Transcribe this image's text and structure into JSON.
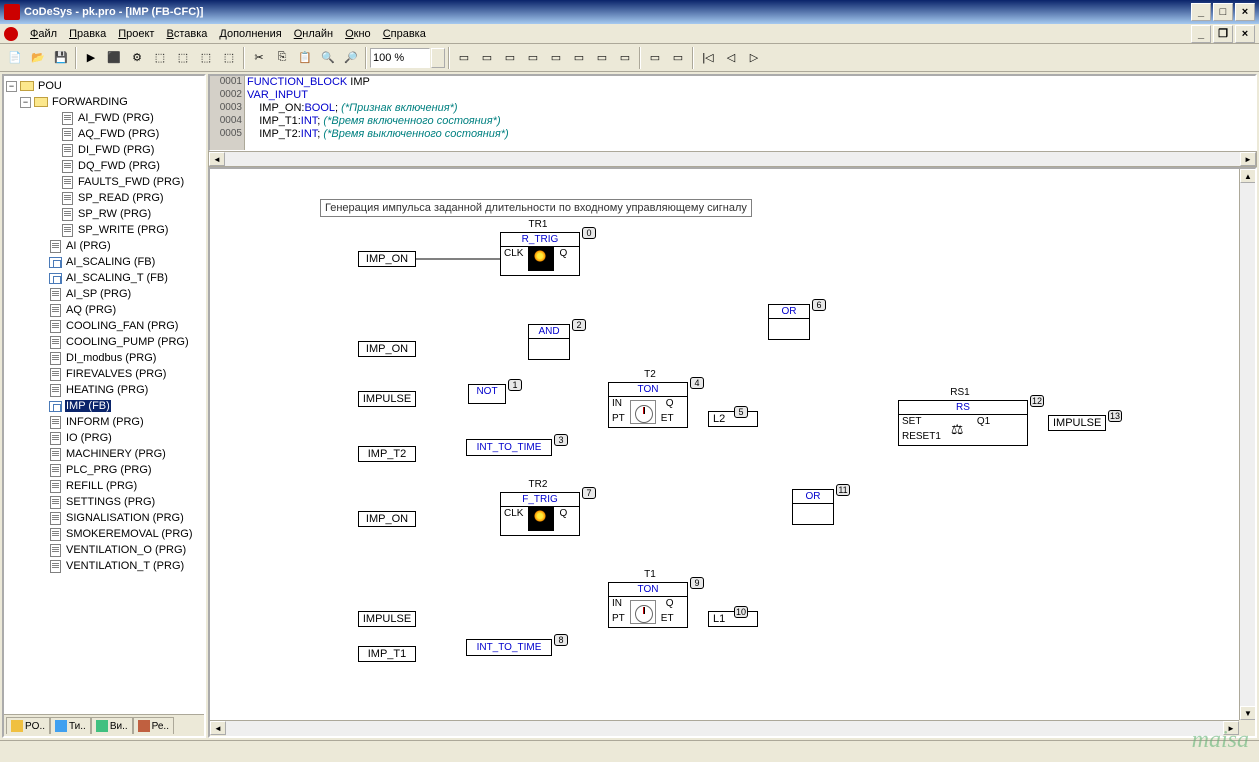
{
  "title": "CoDeSys - pk.pro - [IMP (FB-CFC)]",
  "menus": [
    "Файл",
    "Правка",
    "Проект",
    "Вставка",
    "Дополнения",
    "Онлайн",
    "Окно",
    "Справка"
  ],
  "zoom": "100 %",
  "sidebar": {
    "root": "POU",
    "folder": "FORWARDING",
    "folder_items": [
      "AI_FWD (PRG)",
      "AQ_FWD (PRG)",
      "DI_FWD (PRG)",
      "DQ_FWD (PRG)",
      "FAULTS_FWD (PRG)",
      "SP_READ (PRG)",
      "SP_RW (PRG)",
      "SP_WRITE (PRG)"
    ],
    "items": [
      "AI (PRG)",
      "AI_SCALING (FB)",
      "AI_SCALING_T (FB)",
      "AI_SP (PRG)",
      "AQ (PRG)",
      "COOLING_FAN (PRG)",
      "COOLING_PUMP (PRG)",
      "DI_modbus (PRG)",
      "FIREVALVES (PRG)",
      "HEATING (PRG)",
      "IMP (FB)",
      "INFORM (PRG)",
      "IO (PRG)",
      "MACHINERY (PRG)",
      "PLC_PRG (PRG)",
      "REFILL (PRG)",
      "SETTINGS (PRG)",
      "SIGNALISATION (PRG)",
      "SMOKEREMOVAL (PRG)",
      "VENTILATION_O (PRG)",
      "VENTILATION_T (PRG)"
    ],
    "selected": "IMP (FB)",
    "tabs": [
      "PO..",
      "Ти..",
      "Ви..",
      "Ре.."
    ]
  },
  "code": {
    "lines": [
      {
        "n": "0001",
        "t": "FUNCTION_BLOCK IMP",
        "cls": "kw"
      },
      {
        "n": "0002",
        "t": "VAR_INPUT",
        "cls": "kw"
      },
      {
        "n": "0003",
        "indent": "    ",
        "v": "IMP_ON:",
        "ty": "BOOL",
        "cm": "(*Признак включения*)"
      },
      {
        "n": "0004",
        "indent": "    ",
        "v": "IMP_T1:",
        "ty": "INT",
        "cm": "(*Время включенного состояния*)"
      },
      {
        "n": "0005",
        "indent": "    ",
        "v": "IMP_T2:",
        "ty": "INT",
        "cm": "(*Время выключенного состояния*)"
      }
    ]
  },
  "cfc": {
    "comment": "Генерация импульса заданной длительности по входному управляющему сигналу",
    "inputs": {
      "imp_on_1": "IMP_ON",
      "imp_on_2": "IMP_ON",
      "impulse_1": "IMPULSE",
      "imp_t2": "IMP_T2",
      "imp_on_3": "IMP_ON",
      "impulse_2": "IMPULSE",
      "imp_t1": "IMP_T1"
    },
    "blocks": {
      "tr1": {
        "inst": "TR1",
        "type": "R_TRIG",
        "l": "CLK",
        "r": "Q",
        "n": "0"
      },
      "and": {
        "type": "AND",
        "n": "2"
      },
      "not": {
        "type": "NOT",
        "n": "1"
      },
      "itt1": {
        "type": "INT_TO_TIME",
        "n": "3"
      },
      "t2": {
        "inst": "T2",
        "type": "TON",
        "l1": "IN",
        "l2": "PT",
        "r1": "Q",
        "r2": "ET",
        "n": "4"
      },
      "l2": {
        "label": "L2",
        "n": "5"
      },
      "or1": {
        "type": "OR",
        "n": "6"
      },
      "tr2": {
        "inst": "TR2",
        "type": "F_TRIG",
        "l": "CLK",
        "r": "Q",
        "n": "7"
      },
      "itt2": {
        "type": "INT_TO_TIME",
        "n": "8"
      },
      "t1": {
        "inst": "T1",
        "type": "TON",
        "l1": "IN",
        "l2": "PT",
        "r1": "Q",
        "r2": "ET",
        "n": "9"
      },
      "l1": {
        "label": "L1",
        "n": "10"
      },
      "or2": {
        "type": "OR",
        "n": "11"
      },
      "rs1": {
        "inst": "RS1",
        "type": "RS",
        "l1": "SET",
        "l2": "RESET1",
        "r1": "Q1",
        "n": "12"
      },
      "out": {
        "label": "IMPULSE",
        "n": "13"
      }
    }
  },
  "watermark": "maisa"
}
